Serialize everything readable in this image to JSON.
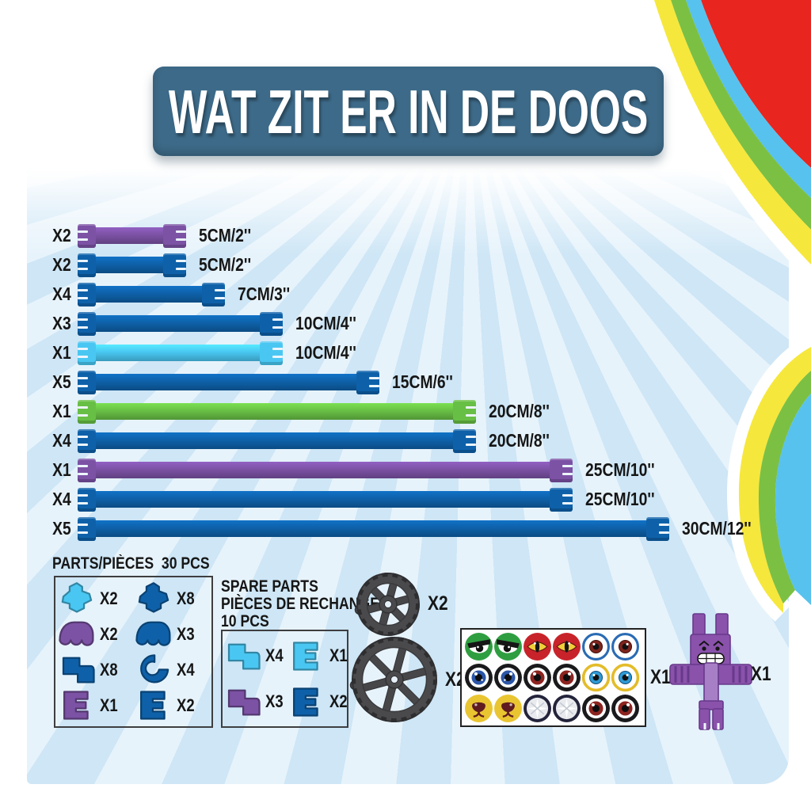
{
  "title": "WAT ZIT ER IN DE DOOS",
  "colors": {
    "blue": "#0e61a9",
    "cyan": "#49c7f2",
    "green": "#68bf45",
    "purple": "#7c52a5",
    "banner_slate": "#3d6a88",
    "wheel_gray": "#4a4a4c",
    "figure_purple": "#8a52ab",
    "panel_blue": "#e7f3fb",
    "rainbow_red": "#e8251f",
    "rainbow_blue": "#58c2ee",
    "rainbow_green": "#7bc043",
    "rainbow_yellow": "#f6e73c"
  },
  "rods": [
    {
      "qty": "X2",
      "color": "purple",
      "cm": 5,
      "length": "5CM/2''"
    },
    {
      "qty": "X2",
      "color": "blue",
      "cm": 5,
      "length": "5CM/2''"
    },
    {
      "qty": "X4",
      "color": "blue",
      "cm": 7,
      "length": "7CM/3''"
    },
    {
      "qty": "X3",
      "color": "blue",
      "cm": 10,
      "length": "10CM/4''"
    },
    {
      "qty": "X1",
      "color": "cyan",
      "cm": 10,
      "length": "10CM/4''"
    },
    {
      "qty": "X5",
      "color": "blue",
      "cm": 15,
      "length": "15CM/6''"
    },
    {
      "qty": "X1",
      "color": "green",
      "cm": 20,
      "length": "20CM/8''"
    },
    {
      "qty": "X4",
      "color": "blue",
      "cm": 20,
      "length": "20CM/8''"
    },
    {
      "qty": "X1",
      "color": "purple",
      "cm": 25,
      "length": "25CM/10''"
    },
    {
      "qty": "X4",
      "color": "blue",
      "cm": 25,
      "length": "25CM/10''"
    },
    {
      "qty": "X5",
      "color": "blue",
      "cm": 30,
      "length": "30CM/12''"
    }
  ],
  "parts": {
    "heading": "PARTS/PIÈCES",
    "pcs_label": "30 PCS",
    "items": [
      {
        "shape": "cross-connector",
        "color": "cyan",
        "qty": "X2"
      },
      {
        "shape": "cross-connector",
        "color": "blue",
        "qty": "X8"
      },
      {
        "shape": "triple-claw-connector",
        "color": "purple",
        "qty": "X2"
      },
      {
        "shape": "triple-claw-connector",
        "color": "blue",
        "qty": "X3"
      },
      {
        "shape": "corner-connector",
        "color": "blue",
        "qty": "X8"
      },
      {
        "shape": "claw-connector",
        "color": "blue",
        "qty": "X4"
      },
      {
        "shape": "clip-connector",
        "color": "purple",
        "qty": "X1"
      },
      {
        "shape": "clip-connector",
        "color": "blue",
        "qty": "X2"
      }
    ]
  },
  "spare_parts": {
    "heading_lines": [
      "SPARE PARTS",
      "PIÈCES DE RECHANGE",
      "10 PCS"
    ],
    "items": [
      {
        "shape": "corner-connector",
        "color": "cyan",
        "qty": "X4"
      },
      {
        "shape": "clip-connector",
        "color": "cyan",
        "qty": "X1"
      },
      {
        "shape": "corner-connector",
        "color": "purple",
        "qty": "X3"
      },
      {
        "shape": "clip-connector",
        "color": "blue",
        "qty": "X2"
      }
    ]
  },
  "wheels": [
    {
      "name": "small-wheel",
      "qty": "X2"
    },
    {
      "name": "large-wheel",
      "qty": "X2"
    }
  ],
  "sticker_sheet": {
    "qty": "X1",
    "rows": [
      [
        "green-angry-eye",
        "green-angry-eye",
        "red-cat-eye",
        "red-cat-eye",
        "blue-ring-red-eye",
        "blue-ring-red-eye"
      ],
      [
        "black-ring-blue-eye",
        "black-ring-blue-eye",
        "black-ring-red-eye",
        "black-ring-red-eye",
        "yellow-ring-blue-eye",
        "yellow-ring-blue-eye"
      ],
      [
        "yellow-dog-muzzle",
        "yellow-dog-muzzle",
        "silver-shine",
        "silver-shine",
        "black-ring-red-eye",
        "black-ring-red-eye"
      ]
    ]
  },
  "figure": {
    "name": "purple-robot-figure",
    "qty": "X1"
  }
}
